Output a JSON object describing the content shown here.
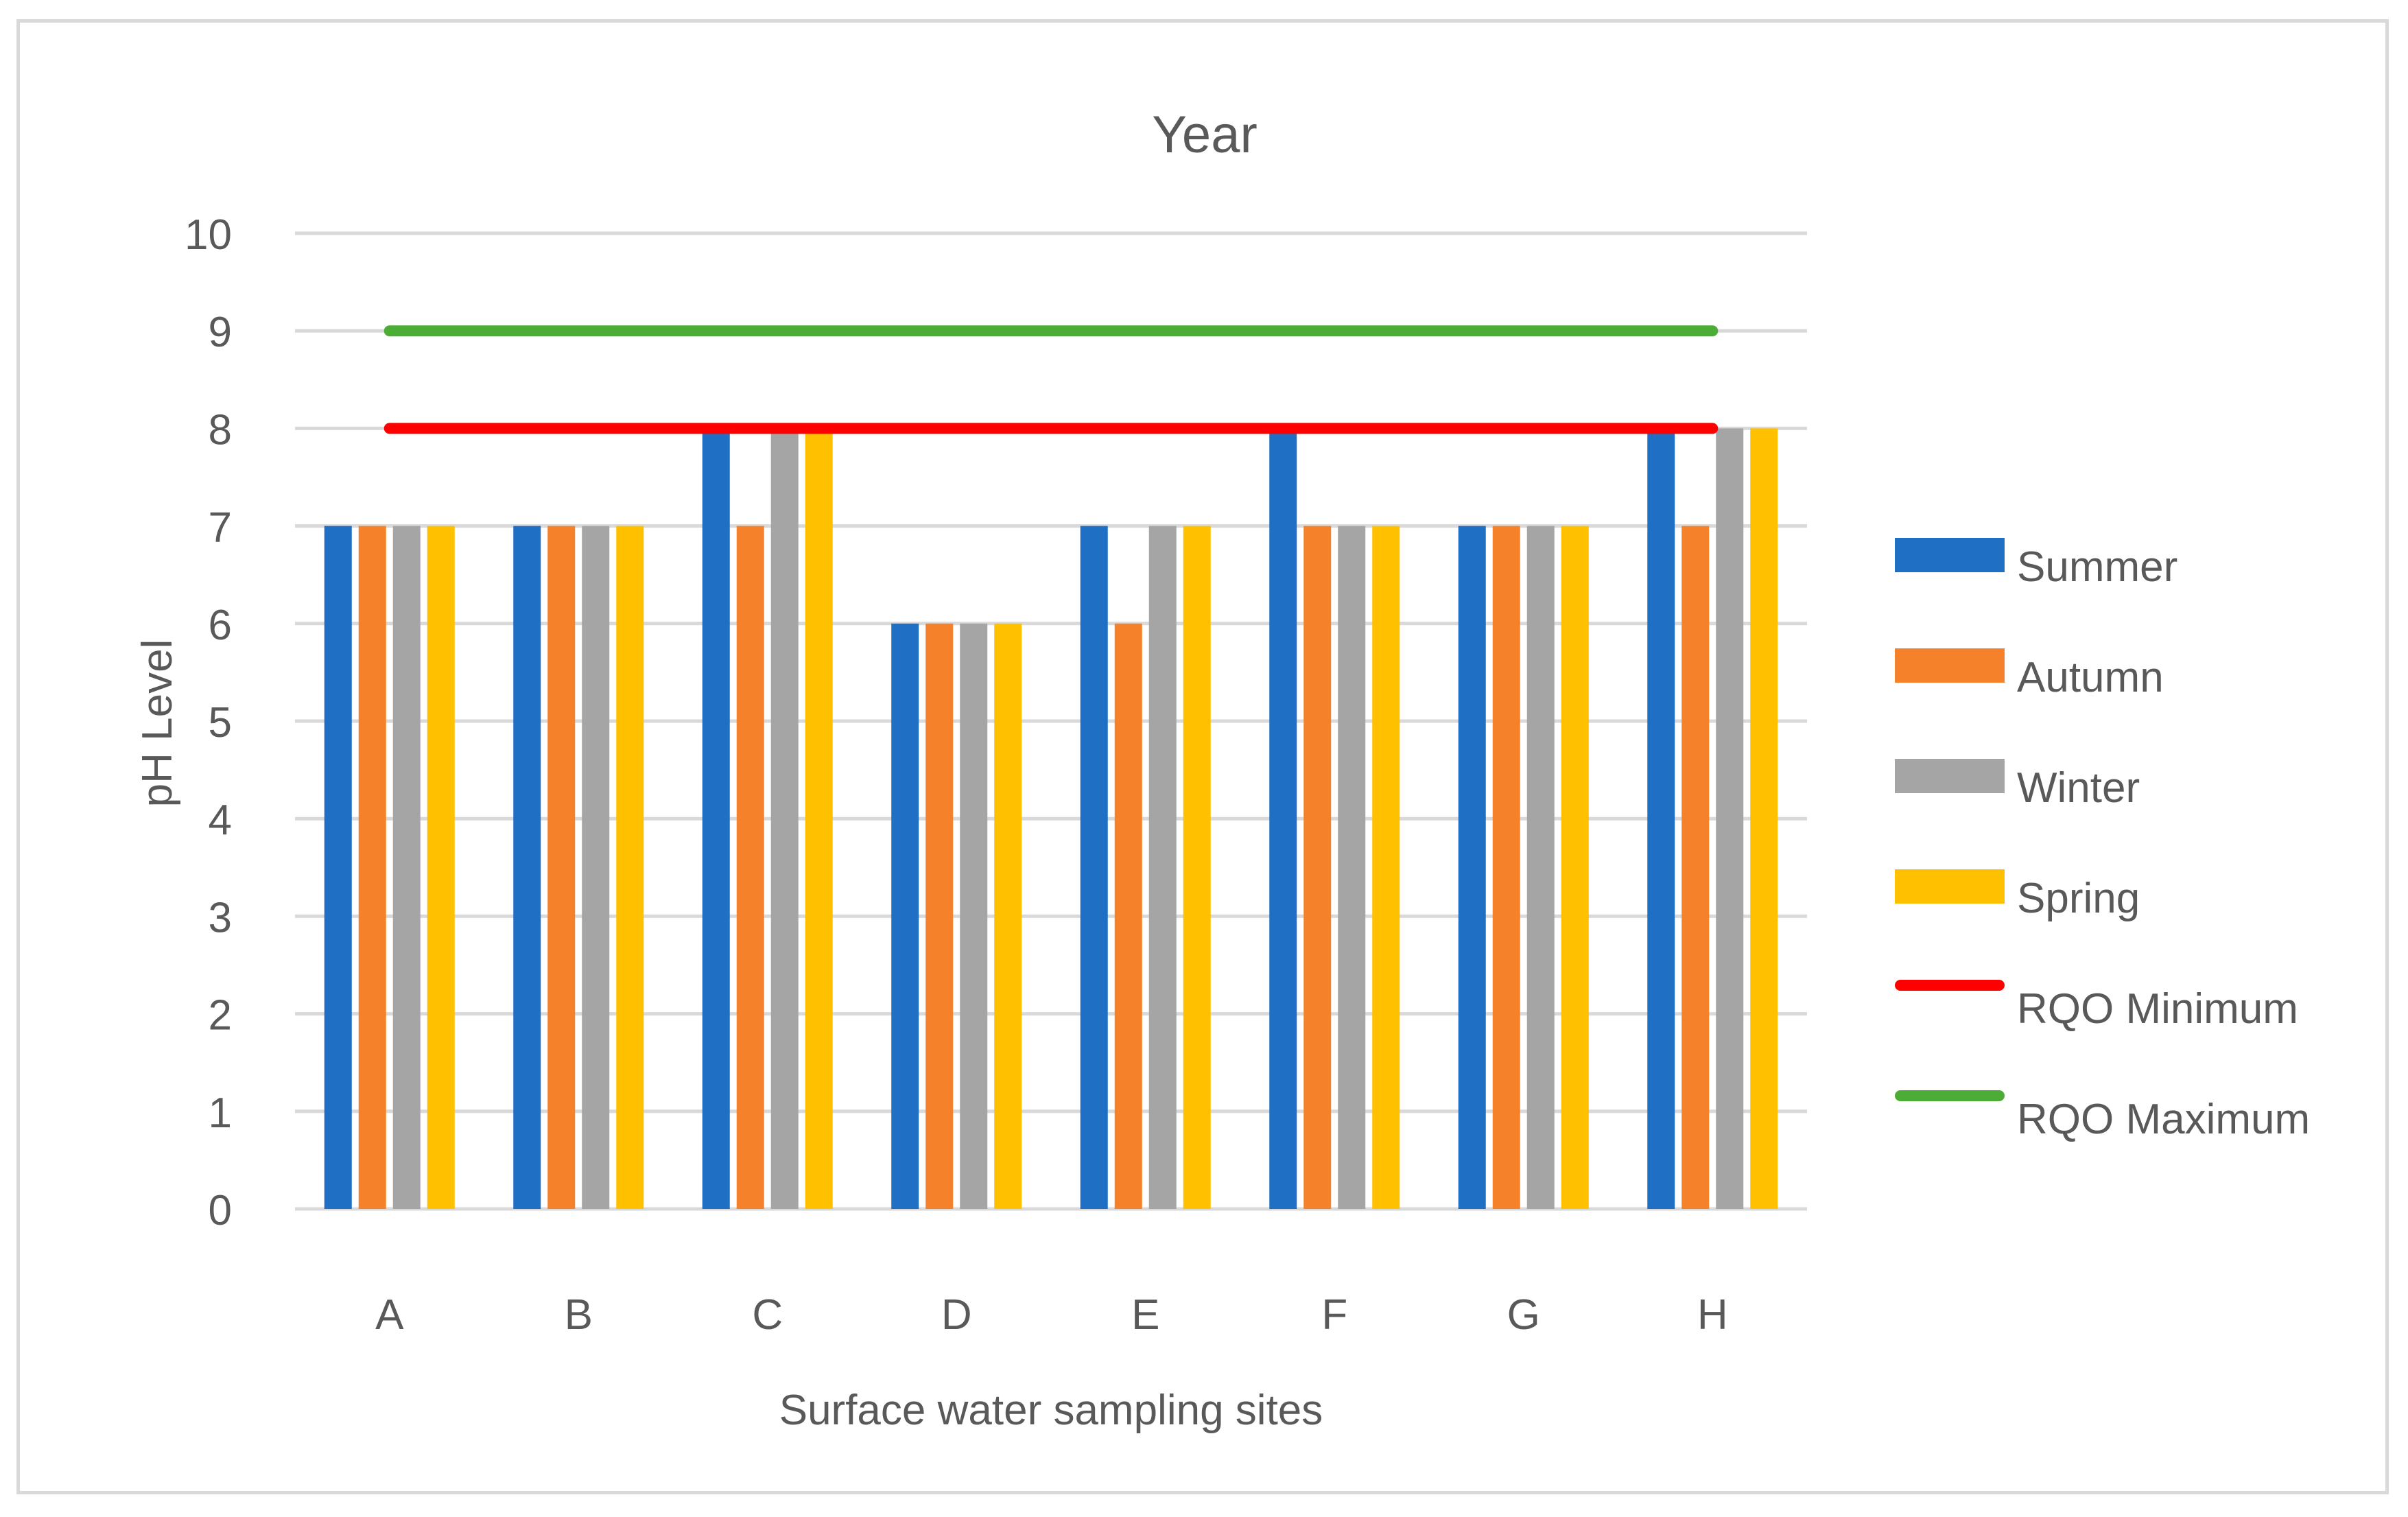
{
  "chart_data": {
    "type": "bar",
    "title": "Year",
    "xlabel": "Surface water sampling sites",
    "ylabel": "pH Level",
    "ylim": [
      0,
      10
    ],
    "yticks": [
      "0",
      "1",
      "2",
      "3",
      "4",
      "5",
      "6",
      "7",
      "8",
      "9",
      "10"
    ],
    "grid": true,
    "legend_position": "right",
    "categories": [
      "A",
      "B",
      "C",
      "D",
      "E",
      "F",
      "G",
      "H"
    ],
    "series": [
      {
        "name": "Summer",
        "color": "#1f6fc5",
        "values": [
          7,
          7,
          8,
          6,
          7,
          8,
          7,
          8
        ]
      },
      {
        "name": "Autumn",
        "color": "#f5812a",
        "values": [
          7,
          7,
          7,
          6,
          6,
          7,
          7,
          7
        ]
      },
      {
        "name": "Winter",
        "color": "#a5a5a5",
        "values": [
          7,
          7,
          8,
          6,
          7,
          7,
          7,
          8
        ]
      },
      {
        "name": "Spring",
        "color": "#ffc000",
        "values": [
          7,
          7,
          8,
          6,
          7,
          7,
          7,
          8
        ]
      }
    ],
    "reference_lines": [
      {
        "name": "RQO Minimum",
        "color": "#ff0000",
        "value": 8
      },
      {
        "name": "RQO Maximum",
        "color": "#4cad36",
        "value": 9
      }
    ]
  }
}
